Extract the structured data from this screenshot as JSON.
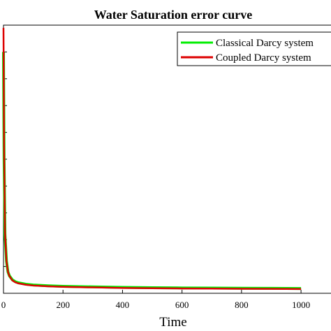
{
  "chart_data": {
    "type": "line",
    "title": "Water Saturation error curve",
    "xlabel": "Time",
    "ylabel": "",
    "xlim": [
      0,
      1150
    ],
    "ylim": [
      0,
      1.0
    ],
    "xticks": [
      0,
      200,
      400,
      600,
      800,
      1000
    ],
    "xtick_labels": [
      "0",
      "200",
      "400",
      "600",
      "800",
      "1000"
    ],
    "legend_position": "top-right",
    "grid": false,
    "series": [
      {
        "name": "Classical Darcy system",
        "color": "#00ee00",
        "x": [
          0,
          2,
          5,
          10,
          15,
          20,
          30,
          40,
          50,
          75,
          100,
          150,
          200,
          300,
          400,
          500,
          600,
          700,
          800,
          900,
          1000
        ],
        "y": [
          0.9,
          0.5,
          0.22,
          0.12,
          0.08,
          0.065,
          0.05,
          0.043,
          0.039,
          0.034,
          0.031,
          0.028,
          0.026,
          0.024,
          0.022,
          0.021,
          0.02,
          0.0195,
          0.019,
          0.0185,
          0.018
        ]
      },
      {
        "name": "Coupled Darcy system",
        "color": "#dd0000",
        "x": [
          0,
          2,
          5,
          10,
          15,
          20,
          30,
          40,
          50,
          75,
          100,
          150,
          200,
          300,
          400,
          500,
          600,
          700,
          800,
          900,
          1000
        ],
        "y": [
          0.99,
          0.55,
          0.23,
          0.12,
          0.08,
          0.064,
          0.048,
          0.041,
          0.037,
          0.032,
          0.029,
          0.026,
          0.024,
          0.022,
          0.02,
          0.019,
          0.018,
          0.0175,
          0.017,
          0.0165,
          0.016
        ]
      }
    ]
  }
}
